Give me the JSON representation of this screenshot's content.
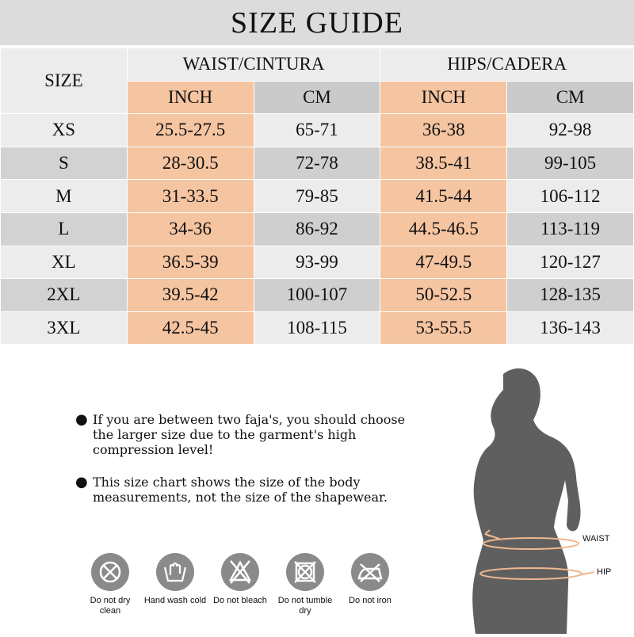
{
  "title": "SIZE GUIDE",
  "table": {
    "size_header": "SIZE",
    "groups": [
      "WAIST/CINTURA",
      "HIPS/CADERA"
    ],
    "units": [
      "INCH",
      "CM",
      "INCH",
      "CM"
    ],
    "rows": [
      [
        "XS",
        "25.5-27.5",
        "65-71",
        "36-38",
        "92-98"
      ],
      [
        "S",
        "28-30.5",
        "72-78",
        "38.5-41",
        "99-105"
      ],
      [
        "M",
        "31-33.5",
        "79-85",
        "41.5-44",
        "106-112"
      ],
      [
        "L",
        "34-36",
        "86-92",
        "44.5-46.5",
        "113-119"
      ],
      [
        "XL",
        "36.5-39",
        "93-99",
        "47-49.5",
        "120-127"
      ],
      [
        "2XL",
        "39.5-42",
        "100-107",
        "50-52.5",
        "128-135"
      ],
      [
        "3XL",
        "42.5-45",
        "108-115",
        "53-55.5",
        "136-143"
      ]
    ]
  },
  "notes": [
    "If you are between two faja's, you should choose the larger size due to the garment's high compression level!",
    "This size chart shows the size of the body measurements, not the size of the shapewear."
  ],
  "care": [
    {
      "icon": "do-not-dry-clean-icon",
      "label": "Do not dry clean"
    },
    {
      "icon": "hand-wash-cold-icon",
      "label": "Hand wash cold"
    },
    {
      "icon": "do-not-bleach-icon",
      "label": "Do not bleach"
    },
    {
      "icon": "do-not-tumble-dry-icon",
      "label": "Do not tumble dry"
    },
    {
      "icon": "do-not-iron-icon",
      "label": "Do not iron"
    }
  ],
  "figure": {
    "waist_label": "WAIST",
    "hip_label": "HIP"
  },
  "colors": {
    "inch": "#f5c4a0",
    "gray": "#cacaca",
    "icon": "#8a8a8a",
    "silhouette": "#5f5f5f"
  }
}
